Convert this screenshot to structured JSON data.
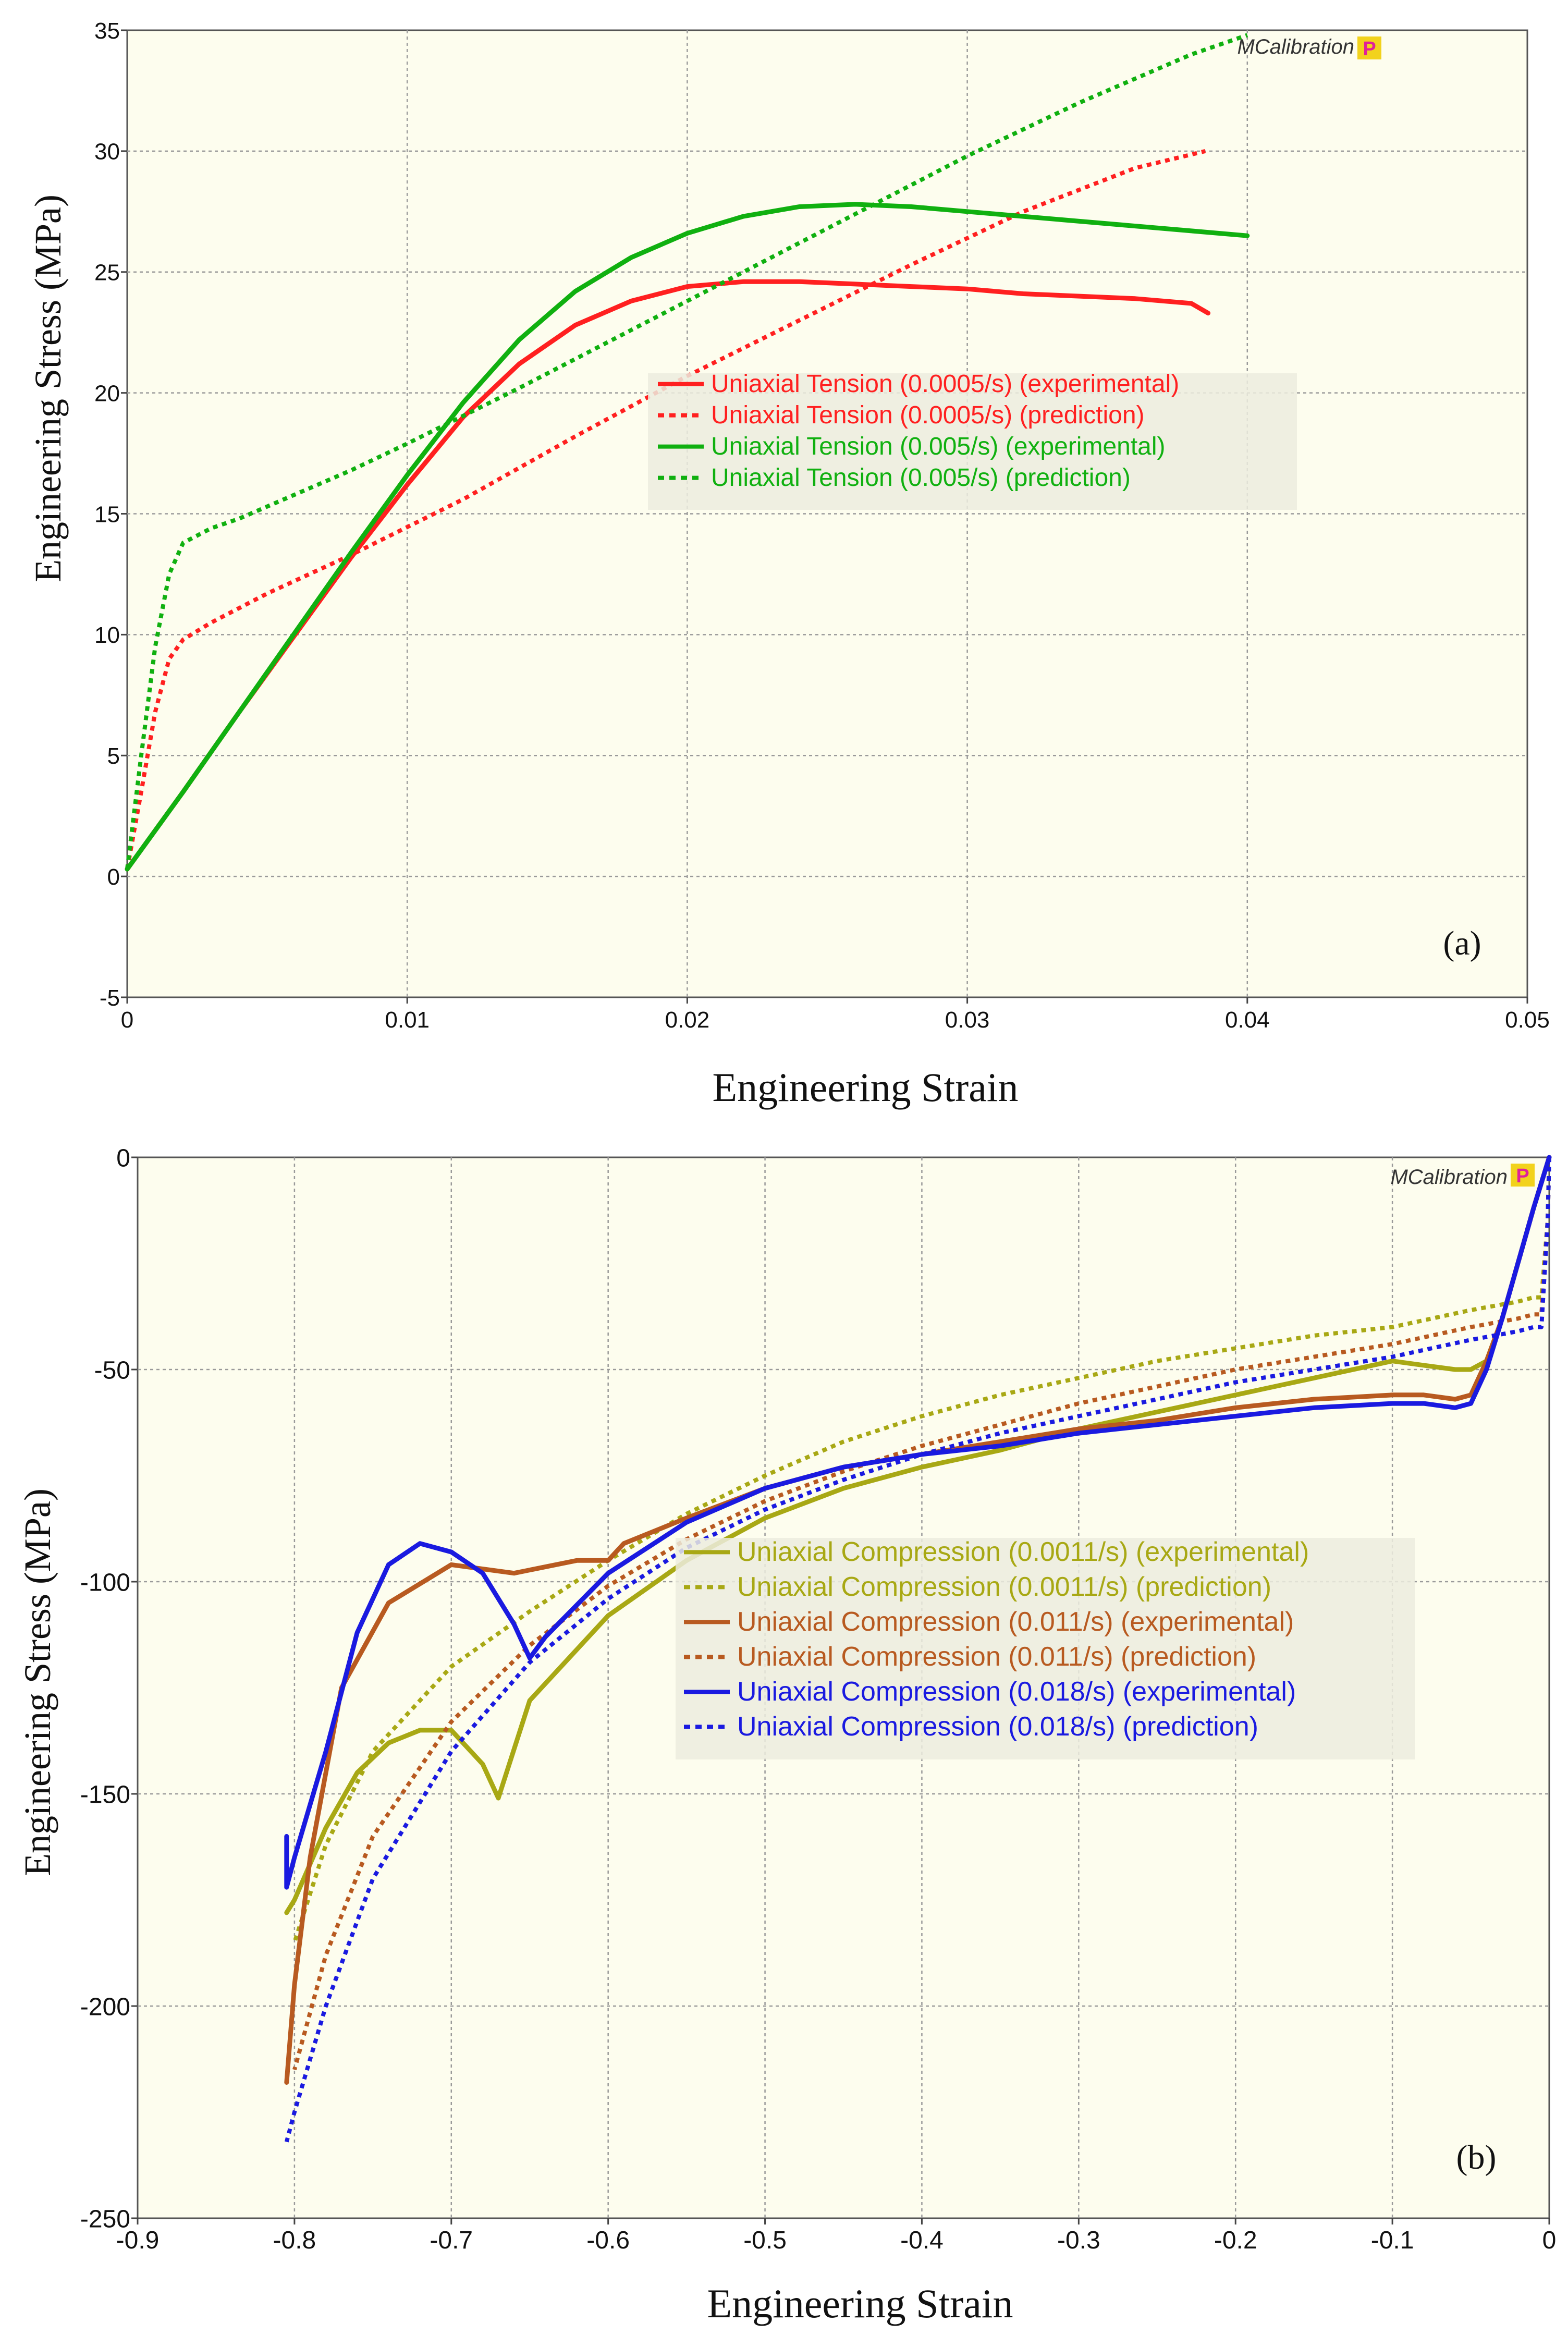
{
  "chart_data": [
    {
      "type": "line",
      "panel_label": "(a)",
      "watermark": "MCalibration",
      "watermark_badge": "P",
      "title": "",
      "xlabel": "Engineering Strain",
      "ylabel": "Engineering Stress (MPa)",
      "xlim": [
        0,
        0.05
      ],
      "ylim": [
        -5,
        35
      ],
      "xticks": [
        0,
        0.01,
        0.02,
        0.03,
        0.04,
        0.05
      ],
      "xtick_labels": [
        "0",
        "0.01",
        "0.02",
        "0.03",
        "0.04",
        "0.05"
      ],
      "yticks": [
        -5,
        0,
        5,
        10,
        15,
        20,
        25,
        30,
        35
      ],
      "ytick_labels": [
        "-5",
        "0",
        "5",
        "10",
        "15",
        "20",
        "25",
        "30",
        "35"
      ],
      "grid": true,
      "legend_position": "center-right",
      "series": [
        {
          "name": "Uniaxial Tension (0.0005/s) (experimental)",
          "color": "#ff2020",
          "style": "solid",
          "x": [
            0,
            0.002,
            0.004,
            0.006,
            0.008,
            0.01,
            0.012,
            0.014,
            0.016,
            0.018,
            0.02,
            0.022,
            0.024,
            0.026,
            0.028,
            0.03,
            0.032,
            0.034,
            0.036,
            0.038,
            0.0386
          ],
          "y": [
            0.3,
            3.5,
            6.8,
            10.0,
            13.2,
            16.2,
            19.0,
            21.2,
            22.8,
            23.8,
            24.4,
            24.6,
            24.6,
            24.5,
            24.4,
            24.3,
            24.1,
            24.0,
            23.9,
            23.7,
            23.3
          ]
        },
        {
          "name": "Uniaxial Tension (0.0005/s) (prediction)",
          "color": "#ff2020",
          "style": "dashed",
          "x": [
            0,
            0.0005,
            0.001,
            0.0015,
            0.002,
            0.003,
            0.005,
            0.008,
            0.012,
            0.016,
            0.02,
            0.024,
            0.028,
            0.032,
            0.036,
            0.0385
          ],
          "y": [
            0.3,
            3.5,
            6.8,
            9.0,
            9.8,
            10.5,
            11.7,
            13.3,
            15.6,
            18.2,
            20.7,
            23.0,
            25.3,
            27.5,
            29.3,
            30.0
          ]
        },
        {
          "name": "Uniaxial Tension (0.005/s) (experimental)",
          "color": "#10b010",
          "style": "solid",
          "x": [
            0,
            0.002,
            0.004,
            0.006,
            0.008,
            0.01,
            0.012,
            0.014,
            0.016,
            0.018,
            0.02,
            0.022,
            0.024,
            0.026,
            0.028,
            0.03,
            0.032,
            0.034,
            0.036,
            0.038,
            0.04
          ],
          "y": [
            0.3,
            3.5,
            6.8,
            10.1,
            13.4,
            16.6,
            19.6,
            22.2,
            24.2,
            25.6,
            26.6,
            27.3,
            27.7,
            27.8,
            27.7,
            27.5,
            27.3,
            27.1,
            26.9,
            26.7,
            26.5
          ]
        },
        {
          "name": "Uniaxial Tension (0.005/s) (prediction)",
          "color": "#10b010",
          "style": "dashed",
          "x": [
            0,
            0.0005,
            0.001,
            0.0015,
            0.002,
            0.003,
            0.004,
            0.006,
            0.008,
            0.01,
            0.014,
            0.018,
            0.022,
            0.026,
            0.03,
            0.034,
            0.038,
            0.04
          ],
          "y": [
            0.3,
            5.0,
            9.5,
            12.5,
            13.8,
            14.4,
            14.8,
            15.8,
            16.8,
            17.9,
            20.2,
            22.6,
            25.0,
            27.4,
            29.8,
            32.0,
            34.0,
            34.8
          ]
        }
      ]
    },
    {
      "type": "line",
      "panel_label": "(b)",
      "watermark": "MCalibration",
      "watermark_badge": "P",
      "title": "",
      "xlabel": "Engineering Strain",
      "ylabel": "Engineering Stress (MPa)",
      "xlim": [
        -0.9,
        0
      ],
      "ylim": [
        -250,
        0
      ],
      "xticks": [
        -0.9,
        -0.8,
        -0.7,
        -0.6,
        -0.5,
        -0.4,
        -0.3,
        -0.2,
        -0.1,
        0
      ],
      "xtick_labels": [
        "-0.9",
        "-0.8",
        "-0.7",
        "-0.6",
        "-0.5",
        "-0.4",
        "-0.3",
        "-0.2",
        "-0.1",
        "0"
      ],
      "yticks": [
        -250,
        -200,
        -150,
        -100,
        -50,
        0
      ],
      "ytick_labels": [
        "-250",
        "-200",
        "-150",
        "-100",
        "-50",
        "0"
      ],
      "grid": true,
      "legend_position": "center",
      "series": [
        {
          "name": "Uniaxial Compression (0.0011/s) (experimental)",
          "color": "#a8a814",
          "style": "solid",
          "x": [
            0,
            -0.01,
            -0.02,
            -0.03,
            -0.04,
            -0.05,
            -0.06,
            -0.08,
            -0.1,
            -0.15,
            -0.2,
            -0.25,
            -0.3,
            -0.35,
            -0.4,
            -0.45,
            -0.5,
            -0.55,
            -0.6,
            -0.65,
            -0.67,
            -0.68,
            -0.7,
            -0.72,
            -0.74,
            -0.76,
            -0.78,
            -0.8,
            -0.805
          ],
          "y": [
            0,
            -12,
            -25,
            -38,
            -48,
            -50,
            -50,
            -49,
            -48,
            -52,
            -56,
            -60,
            -64,
            -69,
            -73,
            -78,
            -85,
            -95,
            -108,
            -128,
            -151,
            -143,
            -135,
            -135,
            -138,
            -145,
            -158,
            -175,
            -178
          ]
        },
        {
          "name": "Uniaxial Compression (0.0011/s) (prediction)",
          "color": "#a8a814",
          "style": "dashed",
          "x": [
            0,
            -0.001,
            -0.005,
            -0.01,
            -0.02,
            -0.05,
            -0.1,
            -0.15,
            -0.2,
            -0.25,
            -0.3,
            -0.35,
            -0.4,
            -0.45,
            -0.5,
            -0.55,
            -0.6,
            -0.65,
            -0.7,
            -0.75,
            -0.78,
            -0.8
          ],
          "y": [
            0,
            -15,
            -33,
            -33,
            -34,
            -36,
            -40,
            -42,
            -45,
            -48,
            -52,
            -56,
            -61,
            -67,
            -75,
            -84,
            -95,
            -107,
            -120,
            -140,
            -162,
            -185
          ]
        },
        {
          "name": "Uniaxial Compression (0.011/s) (experimental)",
          "color": "#b85a20",
          "style": "solid",
          "x": [
            0,
            -0.01,
            -0.02,
            -0.03,
            -0.04,
            -0.05,
            -0.06,
            -0.08,
            -0.1,
            -0.15,
            -0.2,
            -0.25,
            -0.3,
            -0.35,
            -0.4,
            -0.45,
            -0.5,
            -0.55,
            -0.59,
            -0.6,
            -0.62,
            -0.66,
            -0.7,
            -0.74,
            -0.77,
            -0.79,
            -0.8,
            -0.805
          ],
          "y": [
            0,
            -12,
            -25,
            -38,
            -48,
            -56,
            -57,
            -56,
            -56,
            -57,
            -59,
            -62,
            -64,
            -67,
            -70,
            -73,
            -78,
            -85,
            -91,
            -95,
            -95,
            -98,
            -96,
            -105,
            -125,
            -165,
            -195,
            -218
          ]
        },
        {
          "name": "Uniaxial Compression (0.011/s) (prediction)",
          "color": "#b85a20",
          "style": "dashed",
          "x": [
            0,
            -0.001,
            -0.005,
            -0.01,
            -0.02,
            -0.05,
            -0.1,
            -0.15,
            -0.2,
            -0.25,
            -0.3,
            -0.35,
            -0.4,
            -0.45,
            -0.5,
            -0.55,
            -0.6,
            -0.65,
            -0.7,
            -0.75,
            -0.78,
            -0.8
          ],
          "y": [
            0,
            -15,
            -37,
            -37,
            -38,
            -40,
            -44,
            -47,
            -50,
            -54,
            -58,
            -63,
            -68,
            -74,
            -81,
            -90,
            -101,
            -115,
            -133,
            -160,
            -188,
            -215
          ]
        },
        {
          "name": "Uniaxial Compression (0.018/s) (experimental)",
          "color": "#1a1ae0",
          "style": "solid",
          "x": [
            0,
            -0.01,
            -0.02,
            -0.03,
            -0.04,
            -0.05,
            -0.06,
            -0.08,
            -0.1,
            -0.15,
            -0.2,
            -0.25,
            -0.3,
            -0.35,
            -0.4,
            -0.45,
            -0.5,
            -0.55,
            -0.6,
            -0.64,
            -0.65,
            -0.66,
            -0.68,
            -0.7,
            -0.72,
            -0.74,
            -0.76,
            -0.78,
            -0.8,
            -0.805,
            -0.805
          ],
          "y": [
            0,
            -12,
            -25,
            -38,
            -50,
            -58,
            -59,
            -58,
            -58,
            -59,
            -61,
            -63,
            -65,
            -68,
            -70,
            -73,
            -78,
            -86,
            -98,
            -113,
            -118,
            -110,
            -98,
            -93,
            -91,
            -96,
            -112,
            -140,
            -165,
            -172,
            -160
          ]
        },
        {
          "name": "Uniaxial Compression (0.018/s) (prediction)",
          "color": "#1a1ae0",
          "style": "dashed",
          "x": [
            0,
            -0.001,
            -0.005,
            -0.01,
            -0.02,
            -0.05,
            -0.1,
            -0.15,
            -0.2,
            -0.25,
            -0.3,
            -0.35,
            -0.4,
            -0.45,
            -0.5,
            -0.55,
            -0.6,
            -0.65,
            -0.7,
            -0.75,
            -0.78,
            -0.8,
            -0.805
          ],
          "y": [
            0,
            -15,
            -40,
            -40,
            -41,
            -43,
            -47,
            -50,
            -53,
            -57,
            -61,
            -65,
            -70,
            -76,
            -83,
            -92,
            -104,
            -119,
            -140,
            -170,
            -200,
            -225,
            -232
          ]
        }
      ]
    }
  ]
}
